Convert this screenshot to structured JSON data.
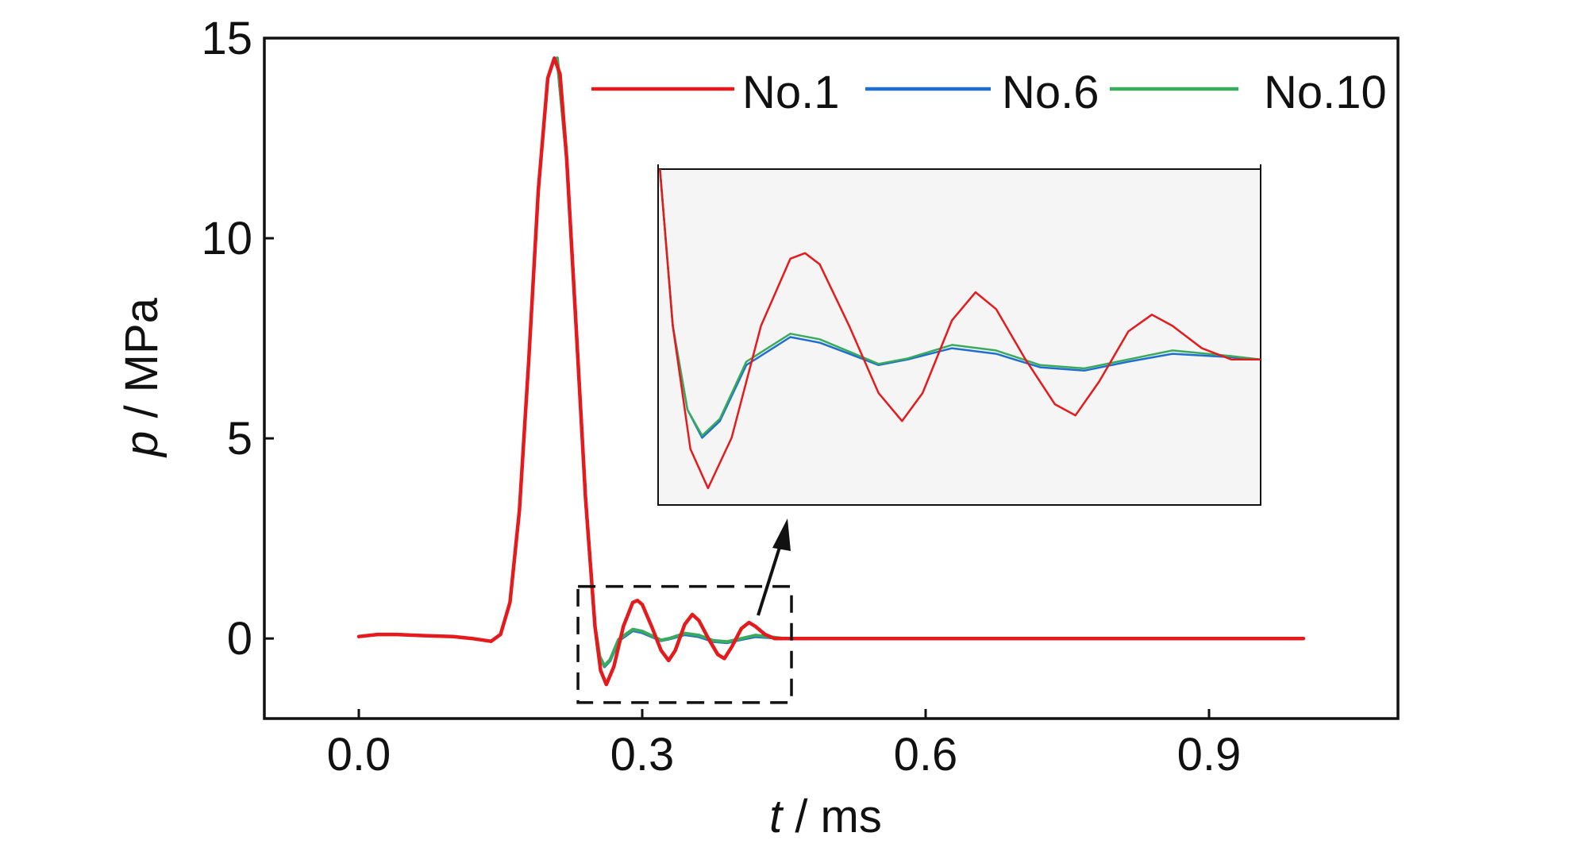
{
  "chart_data": {
    "type": "line",
    "xlabel": {
      "symbol": "t",
      "unit": " / ms"
    },
    "ylabel": {
      "symbol": "p",
      "unit": " / MPa"
    },
    "xlim": [
      -0.1,
      1.1
    ],
    "ylim": [
      -2,
      15
    ],
    "x_ticks": [
      0.0,
      0.3,
      0.6,
      0.9
    ],
    "x_tick_labels": [
      "0.0",
      "0.3",
      "0.6",
      "0.9"
    ],
    "y_ticks": [
      0,
      5,
      10,
      15
    ],
    "y_tick_labels": [
      "0",
      "5",
      "10",
      "15"
    ],
    "grid": false,
    "legend_position": "top-right",
    "series": [
      {
        "name": "No.1",
        "color": "#e41a1c",
        "points": [
          [
            0,
            0.05
          ],
          [
            0.02,
            0.1
          ],
          [
            0.04,
            0.1
          ],
          [
            0.07,
            0.07
          ],
          [
            0.1,
            0.05
          ],
          [
            0.12,
            0.0
          ],
          [
            0.14,
            -0.07
          ],
          [
            0.15,
            0.1
          ],
          [
            0.16,
            0.9
          ],
          [
            0.17,
            3.2
          ],
          [
            0.18,
            7.0
          ],
          [
            0.19,
            11.2
          ],
          [
            0.2,
            14.0
          ],
          [
            0.207,
            14.5
          ],
          [
            0.213,
            14.1
          ],
          [
            0.22,
            12.0
          ],
          [
            0.23,
            7.8
          ],
          [
            0.24,
            3.5
          ],
          [
            0.25,
            0.3
          ],
          [
            0.256,
            -0.8
          ],
          [
            0.262,
            -1.15
          ],
          [
            0.27,
            -0.7
          ],
          [
            0.28,
            0.3
          ],
          [
            0.29,
            0.9
          ],
          [
            0.295,
            0.95
          ],
          [
            0.3,
            0.85
          ],
          [
            0.31,
            0.3
          ],
          [
            0.32,
            -0.3
          ],
          [
            0.328,
            -0.55
          ],
          [
            0.335,
            -0.3
          ],
          [
            0.345,
            0.35
          ],
          [
            0.353,
            0.6
          ],
          [
            0.36,
            0.45
          ],
          [
            0.37,
            0.0
          ],
          [
            0.38,
            -0.4
          ],
          [
            0.387,
            -0.5
          ],
          [
            0.395,
            -0.2
          ],
          [
            0.405,
            0.25
          ],
          [
            0.413,
            0.4
          ],
          [
            0.42,
            0.3
          ],
          [
            0.43,
            0.1
          ],
          [
            0.44,
            0.0
          ],
          [
            0.45,
            0.0
          ],
          [
            0.6,
            0.0
          ],
          [
            0.8,
            0.0
          ],
          [
            1.0,
            0.0
          ]
        ]
      },
      {
        "name": "No.6",
        "color": "#1f6fd0",
        "points": [
          [
            0.21,
            14.5
          ],
          [
            0.22,
            12.0
          ],
          [
            0.23,
            7.8
          ],
          [
            0.24,
            3.5
          ],
          [
            0.25,
            0.3
          ],
          [
            0.255,
            -0.45
          ],
          [
            0.26,
            -0.7
          ],
          [
            0.266,
            -0.55
          ],
          [
            0.275,
            -0.05
          ],
          [
            0.29,
            0.2
          ],
          [
            0.3,
            0.15
          ],
          [
            0.31,
            0.05
          ],
          [
            0.32,
            -0.05
          ],
          [
            0.33,
            0.0
          ],
          [
            0.345,
            0.1
          ],
          [
            0.36,
            0.05
          ],
          [
            0.375,
            -0.07
          ],
          [
            0.39,
            -0.1
          ],
          [
            0.405,
            -0.02
          ],
          [
            0.42,
            0.05
          ],
          [
            0.44,
            0.02
          ],
          [
            0.45,
            0.0
          ]
        ]
      },
      {
        "name": "No.10",
        "color": "#3aaa5c",
        "points": [
          [
            0.21,
            14.5
          ],
          [
            0.22,
            12.0
          ],
          [
            0.23,
            7.8
          ],
          [
            0.24,
            3.5
          ],
          [
            0.25,
            0.3
          ],
          [
            0.255,
            -0.45
          ],
          [
            0.26,
            -0.68
          ],
          [
            0.266,
            -0.53
          ],
          [
            0.275,
            -0.02
          ],
          [
            0.29,
            0.23
          ],
          [
            0.3,
            0.18
          ],
          [
            0.31,
            0.07
          ],
          [
            0.32,
            -0.04
          ],
          [
            0.33,
            0.01
          ],
          [
            0.345,
            0.13
          ],
          [
            0.36,
            0.08
          ],
          [
            0.375,
            -0.05
          ],
          [
            0.39,
            -0.08
          ],
          [
            0.405,
            0.0
          ],
          [
            0.42,
            0.08
          ],
          [
            0.44,
            0.03
          ],
          [
            0.45,
            0.0
          ]
        ]
      }
    ],
    "inset": {
      "xlim": [
        0.245,
        0.45
      ],
      "ylim": [
        -1.3,
        1.7
      ],
      "annotation": "zoom box with arrow pointing to inset"
    }
  }
}
